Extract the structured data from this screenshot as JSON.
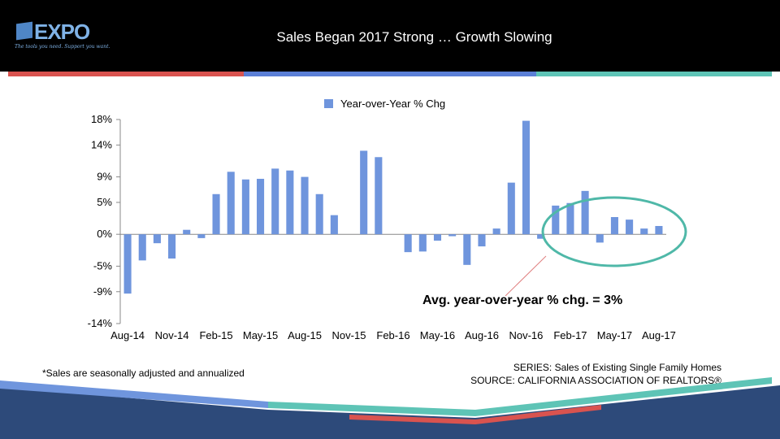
{
  "header": {
    "logo_text": "EXPO",
    "logo_tagline": "The tools you need. Support you want.",
    "title": "Sales Began 2017 Strong … Growth Slowing"
  },
  "footnote": "*Sales are seasonally adjusted and annualized",
  "source": {
    "series": "SERIES: Sales of Existing Single Family Homes",
    "source": "SOURCE:  CALIFORNIA ASSOCIATION OF REALTORS®"
  },
  "annotation": "Avg. year-over-year % chg. = 3%",
  "colors": {
    "bar": "#6f95dd",
    "highlight_ellipse": "#4fb8a8",
    "stripe_red": "#d9534f",
    "stripe_blue": "#5b7fd6",
    "stripe_teal": "#5ec4b6",
    "footer_navy": "#2d4a7a"
  },
  "chart_data": {
    "type": "bar",
    "legend": [
      "Year-over-Year % Chg"
    ],
    "legend_position": "top-center",
    "grid": false,
    "ylim": [
      -14,
      18
    ],
    "yticks": [
      18,
      14,
      9,
      5,
      0,
      -5,
      -9,
      -14
    ],
    "ytick_labels": [
      "18%",
      "14%",
      "9%",
      "5%",
      "0%",
      "-5%",
      "-9%",
      "-14%"
    ],
    "xtick_labels": [
      "Aug-14",
      "Nov-14",
      "Feb-15",
      "May-15",
      "Aug-15",
      "Nov-15",
      "Feb-16",
      "May-16",
      "Aug-16",
      "Nov-16",
      "Feb-17",
      "May-17",
      "Aug-17"
    ],
    "categories": [
      "Aug-14",
      "Sep-14",
      "Oct-14",
      "Nov-14",
      "Dec-14",
      "Jan-15",
      "Feb-15",
      "Mar-15",
      "Apr-15",
      "May-15",
      "Jun-15",
      "Jul-15",
      "Aug-15",
      "Sep-15",
      "Oct-15",
      "Nov-15",
      "Dec-15",
      "Jan-16",
      "Feb-16",
      "Mar-16",
      "Apr-16",
      "May-16",
      "Jun-16",
      "Jul-16",
      "Aug-16",
      "Sep-16",
      "Oct-16",
      "Nov-16",
      "Dec-16",
      "Jan-17",
      "Feb-17",
      "Mar-17",
      "Apr-17",
      "May-17",
      "Jun-17",
      "Jul-17",
      "Aug-17"
    ],
    "series": [
      {
        "name": "Year-over-Year % Chg",
        "values": [
          -9.3,
          -4.1,
          -1.4,
          -3.8,
          0.7,
          -0.6,
          6.3,
          9.8,
          8.6,
          8.7,
          10.3,
          10.0,
          9.0,
          6.3,
          3.0,
          0.0,
          13.1,
          12.1,
          0.0,
          -2.8,
          -2.7,
          -1.0,
          -0.3,
          -4.8,
          -1.9,
          0.9,
          8.1,
          17.8,
          -0.7,
          4.5,
          4.9,
          6.8,
          -1.3,
          2.7,
          2.3,
          0.9,
          1.3
        ]
      }
    ]
  }
}
